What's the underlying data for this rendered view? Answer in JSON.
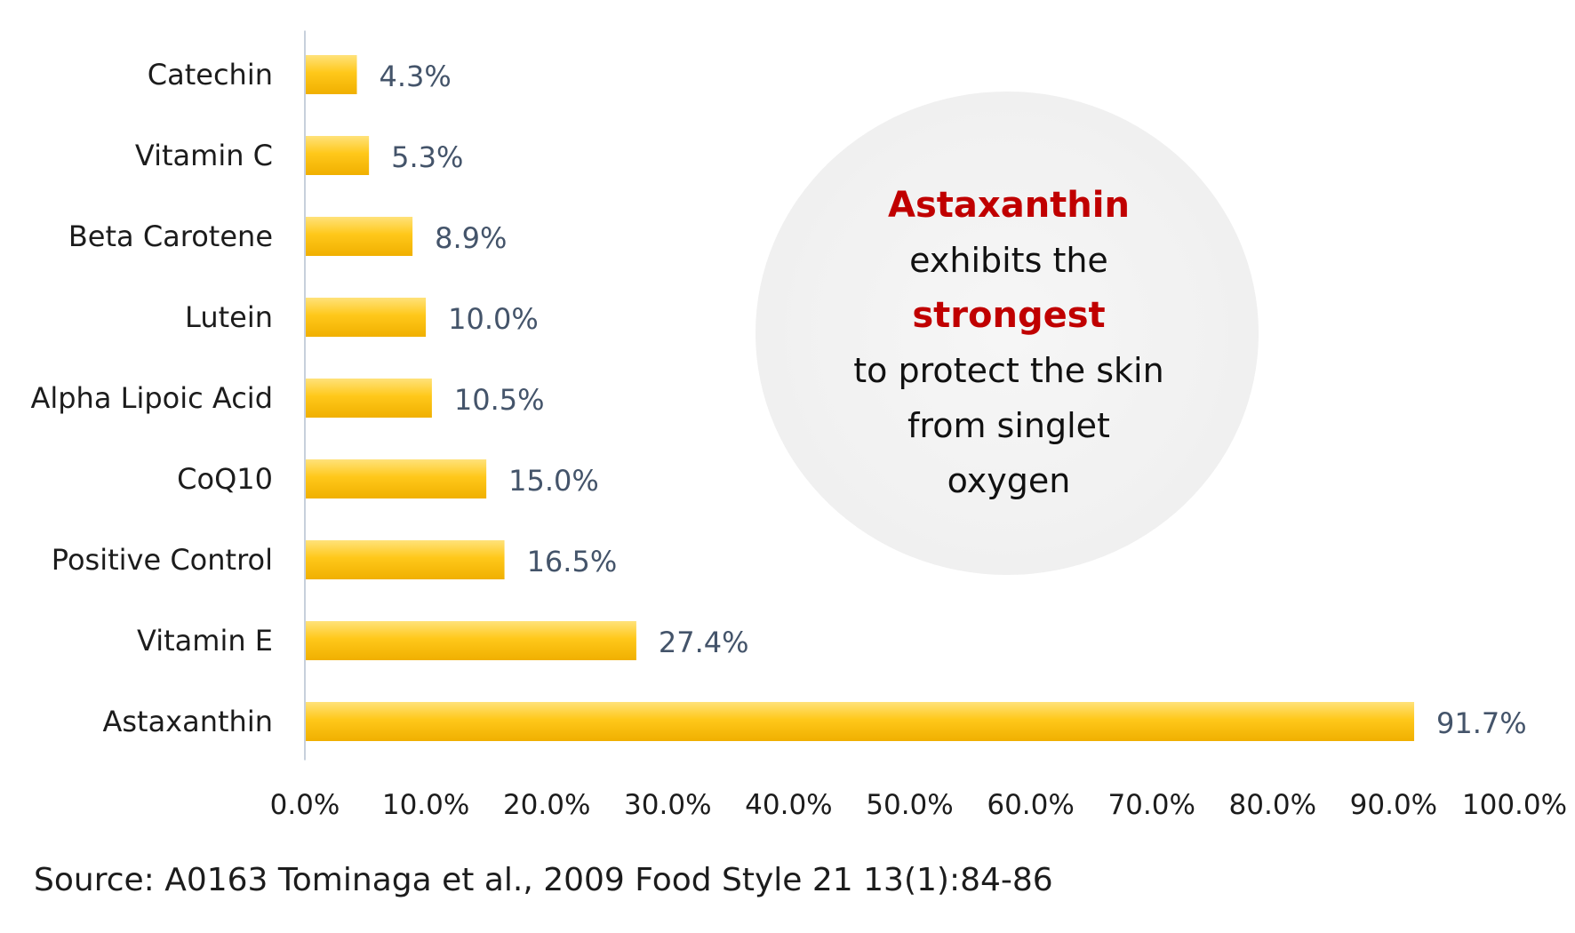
{
  "chart_data": {
    "type": "bar",
    "orientation": "horizontal",
    "categories": [
      "Catechin",
      "Vitamin C",
      "Beta Carotene",
      "Lutein",
      "Alpha Lipoic Acid",
      "CoQ10",
      "Positive Control",
      "Vitamin E",
      "Astaxanthin"
    ],
    "values": [
      4.3,
      5.3,
      8.9,
      10.0,
      10.5,
      15.0,
      16.5,
      27.4,
      91.7
    ],
    "value_labels": [
      "4.3%",
      "5.3%",
      "8.9%",
      "10.0%",
      "10.5%",
      "15.0%",
      "16.5%",
      "27.4%",
      "91.7%"
    ],
    "xlim": [
      0,
      100
    ],
    "x_ticks": [
      0,
      10,
      20,
      30,
      40,
      50,
      60,
      70,
      80,
      90,
      100
    ],
    "x_tick_labels": [
      "0.0%",
      "10.0%",
      "20.0%",
      "30.0%",
      "40.0%",
      "50.0%",
      "60.0%",
      "70.0%",
      "80.0%",
      "90.0%",
      "100.0%"
    ],
    "title": "",
    "xlabel": "",
    "ylabel": "",
    "grid": false,
    "bar_color": "#ffc000"
  },
  "callout": {
    "line1": "Astaxanthin",
    "line2": "exhibits the",
    "line3": "strongest",
    "line4": "to protect the skin",
    "line5": "from singlet",
    "line6": "oxygen",
    "accent_color": "#c00000"
  },
  "source": "Source: A0163 Tominaga et al., 2009 Food Style 21 13(1):84-86"
}
